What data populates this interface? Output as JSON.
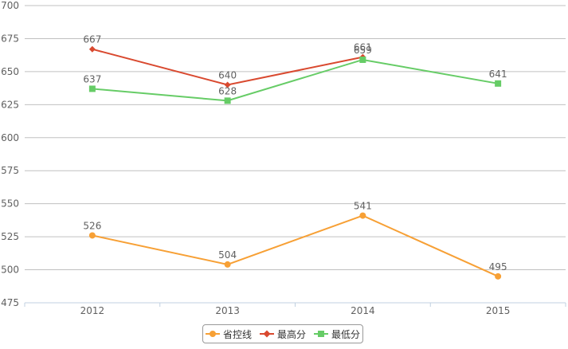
{
  "chart_data": {
    "type": "line",
    "categories": [
      "2012",
      "2013",
      "2014",
      "2015"
    ],
    "ylim": [
      475,
      700
    ],
    "yticks": [
      475,
      500,
      525,
      550,
      575,
      600,
      625,
      650,
      675,
      700
    ],
    "grid": true,
    "legend_position": "bottom-center",
    "series": [
      {
        "name": "省控线",
        "color": "#f7a035",
        "marker": "circle",
        "values": [
          526,
          504,
          541,
          495
        ]
      },
      {
        "name": "最高分",
        "color": "#d9492f",
        "marker": "diamond",
        "values": [
          667,
          640,
          661,
          null
        ]
      },
      {
        "name": "最低分",
        "color": "#66cc66",
        "marker": "square",
        "values": [
          637,
          628,
          659,
          641
        ]
      }
    ]
  }
}
